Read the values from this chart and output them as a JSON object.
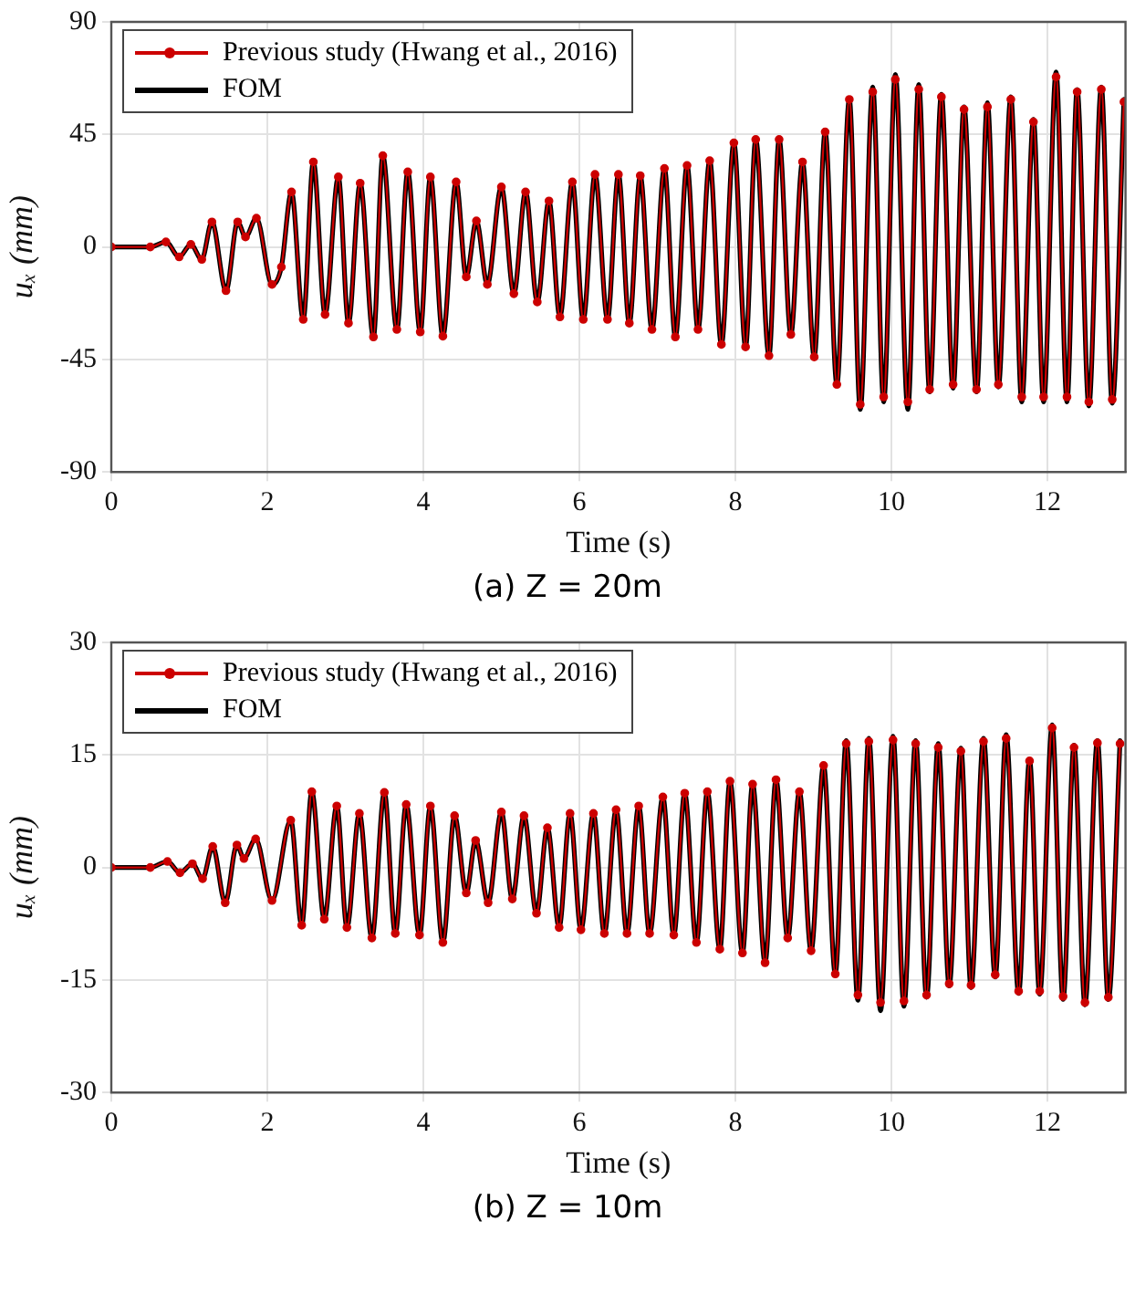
{
  "chart_data": [
    {
      "type": "line",
      "xlabel": "Time (s)",
      "ylabel": "uₓ (mm)",
      "xlim": [
        0,
        13
      ],
      "xticks": [
        0,
        2,
        4,
        6,
        8,
        10,
        12
      ],
      "ylim": [
        -90,
        90
      ],
      "yticks": [
        -90,
        -45,
        0,
        45,
        90
      ],
      "grid": true,
      "legend": "top left",
      "annotations": [
        "(a) Z = 20m"
      ],
      "x": [
        0,
        0.5,
        0.7,
        0.87,
        1.02,
        1.16,
        1.29,
        1.47,
        1.62,
        1.72,
        1.86,
        2.06,
        2.18,
        2.31,
        2.46,
        2.59,
        2.74,
        2.91,
        3.04,
        3.19,
        3.36,
        3.48,
        3.66,
        3.8,
        3.96,
        4.09,
        4.25,
        4.42,
        4.55,
        4.68,
        4.82,
        5.0,
        5.16,
        5.31,
        5.46,
        5.61,
        5.75,
        5.91,
        6.05,
        6.2,
        6.36,
        6.5,
        6.64,
        6.78,
        6.93,
        7.09,
        7.23,
        7.38,
        7.52,
        7.67,
        7.82,
        7.98,
        8.13,
        8.26,
        8.43,
        8.56,
        8.71,
        8.86,
        9.01,
        9.15,
        9.3,
        9.46,
        9.6,
        9.76,
        9.9,
        10.05,
        10.21,
        10.35,
        10.49,
        10.64,
        10.79,
        10.93,
        11.09,
        11.23,
        11.37,
        11.53,
        11.67,
        11.82,
        11.95,
        12.11,
        12.25,
        12.38,
        12.53,
        12.69,
        12.83,
        12.98
      ],
      "series": [
        {
          "name": "Previous study (Hwang et al., 2016)",
          "color": "#cc0000",
          "marker": "circle",
          "values": [
            0,
            0,
            2,
            -4,
            1,
            -5,
            10,
            -17.5,
            10,
            4,
            11.5,
            -15,
            -8,
            22,
            -29,
            34,
            -27,
            28,
            -30.5,
            25.5,
            -36,
            36.5,
            -33,
            30,
            -34,
            28,
            -35.7,
            26,
            -12,
            10.4,
            -15,
            24,
            -18.7,
            22,
            -22,
            18.4,
            -28,
            26,
            -29,
            29,
            -29,
            29,
            -30.5,
            28.5,
            -33,
            31.4,
            -36,
            32.6,
            -33,
            34.5,
            -39,
            41.6,
            -40,
            43,
            -43.5,
            43,
            -35,
            34,
            -44,
            46,
            -55,
            59,
            -63,
            62,
            -60,
            67,
            -62,
            63,
            -57,
            60,
            -55,
            55,
            -57,
            56,
            -55,
            59,
            -60,
            50,
            -60,
            68,
            -60,
            62,
            -62,
            63,
            -61,
            58
          ]
        },
        {
          "name": "FOM",
          "color": "#000000",
          "marker": "none",
          "values": [
            0,
            0,
            2,
            -4,
            1,
            -5,
            10,
            -17.5,
            10,
            4,
            11.5,
            -15,
            -8,
            22,
            -29,
            34,
            -27,
            28,
            -30.5,
            25.5,
            -36,
            36.5,
            -33,
            30,
            -34,
            28,
            -35.7,
            26,
            -12,
            10.4,
            -15,
            24,
            -18.7,
            22,
            -22,
            18.4,
            -28,
            26,
            -29,
            29,
            -29,
            29,
            -30.5,
            28.5,
            -33,
            31.4,
            -36,
            32.6,
            -33,
            34.5,
            -39,
            41.6,
            -40,
            43,
            -43.5,
            43,
            -35,
            34,
            -44,
            46,
            -55,
            59,
            -65,
            64,
            -62,
            69,
            -65,
            65,
            -58,
            61,
            -56.5,
            56,
            -58,
            57.7,
            -56,
            60,
            -62,
            51,
            -62,
            70,
            -62,
            63,
            -63.6,
            64,
            -62.5,
            59
          ]
        }
      ]
    },
    {
      "type": "line",
      "xlabel": "Time (s)",
      "ylabel": "uₓ (mm)",
      "xlim": [
        0,
        13
      ],
      "xticks": [
        0,
        2,
        4,
        6,
        8,
        10,
        12
      ],
      "ylim": [
        -30,
        30
      ],
      "yticks": [
        -30,
        -15,
        0,
        15,
        30
      ],
      "grid": true,
      "legend": "top left",
      "annotations": [
        "(b) Z = 10m"
      ],
      "x": [
        0,
        0.5,
        0.72,
        0.88,
        1.04,
        1.17,
        1.3,
        1.46,
        1.61,
        1.7,
        1.85,
        2.06,
        2.3,
        2.44,
        2.57,
        2.73,
        2.89,
        3.02,
        3.18,
        3.34,
        3.5,
        3.64,
        3.78,
        3.95,
        4.09,
        4.25,
        4.4,
        4.55,
        4.67,
        4.83,
        5.0,
        5.14,
        5.29,
        5.45,
        5.59,
        5.74,
        5.88,
        6.02,
        6.18,
        6.32,
        6.47,
        6.61,
        6.76,
        6.9,
        7.07,
        7.21,
        7.35,
        7.5,
        7.64,
        7.8,
        7.93,
        8.09,
        8.22,
        8.38,
        8.52,
        8.67,
        8.82,
        8.97,
        9.13,
        9.28,
        9.42,
        9.57,
        9.71,
        9.86,
        10.02,
        10.16,
        10.31,
        10.45,
        10.6,
        10.74,
        10.89,
        11.02,
        11.18,
        11.33,
        11.47,
        11.63,
        11.77,
        11.9,
        12.06,
        12.2,
        12.34,
        12.48,
        12.64,
        12.78,
        12.93
      ],
      "series": [
        {
          "name": "Previous study (Hwang et al., 2016)",
          "color": "#cc0000",
          "marker": "circle",
          "values": [
            0,
            0,
            0.8,
            -0.7,
            0.5,
            -1.5,
            2.8,
            -4.7,
            3,
            1.2,
            3.8,
            -4.4,
            6.3,
            -7.7,
            10.1,
            -6.9,
            8.2,
            -8,
            7.2,
            -9.4,
            10,
            -8.8,
            8.4,
            -9,
            8.2,
            -10,
            6.9,
            -3.4,
            3.6,
            -4.7,
            7.4,
            -4.2,
            6.9,
            -6.1,
            5.3,
            -8,
            7.2,
            -8.3,
            7.2,
            -8.8,
            7.7,
            -8.8,
            8.2,
            -8.8,
            9.4,
            -9,
            9.9,
            -10,
            10.1,
            -10.9,
            11.5,
            -11.4,
            11.1,
            -12.7,
            11.7,
            -9.4,
            10.1,
            -11.1,
            13.6,
            -14.2,
            16.5,
            -17,
            16.8,
            -18,
            17,
            -17.8,
            16.5,
            -17,
            16,
            -15.5,
            15.5,
            -15.7,
            16.8,
            -14.3,
            17.2,
            -16.5,
            14.2,
            -16.5,
            18.6,
            -17.2,
            16,
            -18,
            16.6,
            -17.3,
            16.5
          ]
        },
        {
          "name": "FOM",
          "color": "#000000",
          "marker": "none",
          "values": [
            0,
            0,
            0.8,
            -0.7,
            0.5,
            -1.5,
            2.8,
            -4.7,
            3,
            1.2,
            3.8,
            -4.4,
            6.3,
            -7.7,
            10.1,
            -6.9,
            8.2,
            -8,
            7.2,
            -9.4,
            10,
            -8.8,
            8.4,
            -9,
            8.2,
            -10,
            6.9,
            -3.4,
            3.6,
            -4.7,
            7.4,
            -4.2,
            6.9,
            -6.1,
            5.3,
            -8,
            7.2,
            -8.3,
            7.2,
            -8.8,
            7.7,
            -8.8,
            8.2,
            -8.8,
            9.4,
            -9,
            9.9,
            -10,
            10.1,
            -10.9,
            11.5,
            -11.4,
            11.1,
            -12.7,
            11.7,
            -9.4,
            10.1,
            -11.1,
            13.6,
            -14.2,
            16.9,
            -17.7,
            17.2,
            -19.1,
            17.5,
            -18.5,
            16.9,
            -17.3,
            16.5,
            -15.8,
            15.9,
            -16,
            17.2,
            -14.6,
            17.7,
            -16.8,
            14.4,
            -16.9,
            19,
            -17.6,
            16.3,
            -18.3,
            16.9,
            -17.6,
            16.9
          ]
        }
      ]
    }
  ]
}
